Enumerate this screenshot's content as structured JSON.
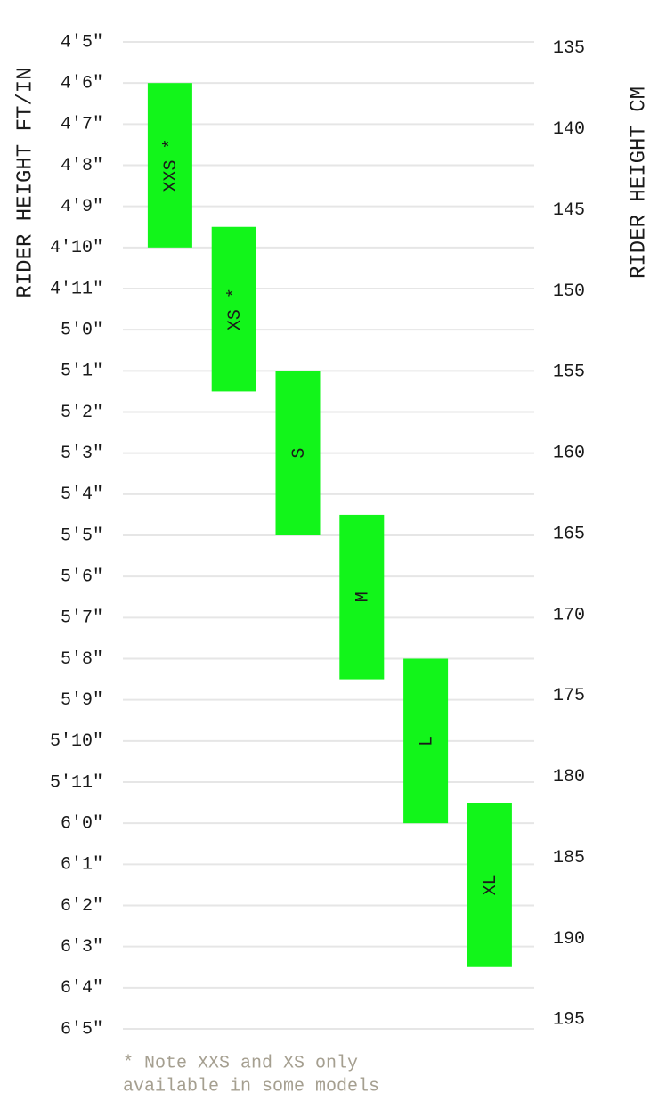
{
  "chart_data": {
    "type": "range-bar",
    "y_label": "RIDER HEIGHT FT/IN",
    "y2_label": "RIDER HEIGHT CM",
    "note": [
      "* Note XXS and XS only",
      "available in some models"
    ],
    "categories": [
      "XXS *",
      "XS *",
      "S",
      "M",
      "L",
      "XL"
    ],
    "low": [
      54,
      57.5,
      61,
      64.5,
      68,
      71.5
    ],
    "high": [
      58,
      61.5,
      65,
      68.5,
      72,
      75.5
    ],
    "color": "#12f51a",
    "ylim": [
      53,
      77
    ],
    "yticks": [
      {
        "value": 53,
        "label": "4'5\""
      },
      {
        "value": 54,
        "label": "4'6\""
      },
      {
        "value": 55,
        "label": "4'7\""
      },
      {
        "value": 56,
        "label": "4'8\""
      },
      {
        "value": 57,
        "label": "4'9\""
      },
      {
        "value": 58,
        "label": "4'10\""
      },
      {
        "value": 59,
        "label": "4'11\""
      },
      {
        "value": 60,
        "label": "5'0\""
      },
      {
        "value": 61,
        "label": "5'1\""
      },
      {
        "value": 62,
        "label": "5'2\""
      },
      {
        "value": 63,
        "label": "5'3\""
      },
      {
        "value": 64,
        "label": "5'4\""
      },
      {
        "value": 65,
        "label": "5'5\""
      },
      {
        "value": 66,
        "label": "5'6\""
      },
      {
        "value": 67,
        "label": "5'7\""
      },
      {
        "value": 68,
        "label": "5'8\""
      },
      {
        "value": 69,
        "label": "5'9\""
      },
      {
        "value": 70,
        "label": "5'10\""
      },
      {
        "value": 71,
        "label": "5'11\""
      },
      {
        "value": 72,
        "label": "6'0\""
      },
      {
        "value": 73,
        "label": "6'1\""
      },
      {
        "value": 74,
        "label": "6'2\""
      },
      {
        "value": 75,
        "label": "6'3\""
      },
      {
        "value": 76,
        "label": "6'4\""
      },
      {
        "value": 77,
        "label": "6'5\""
      }
    ],
    "y2lim": [
      134.62,
      195.58
    ],
    "y2ticks": [
      135,
      140,
      145,
      150,
      155,
      160,
      165,
      170,
      175,
      180,
      185,
      190,
      195
    ],
    "grid": true
  }
}
